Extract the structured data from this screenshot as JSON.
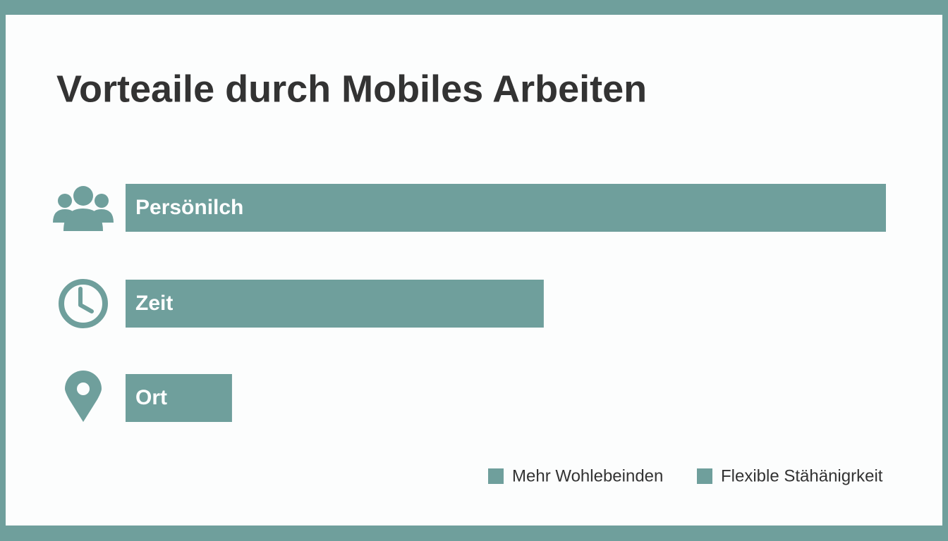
{
  "chart_data": {
    "type": "bar",
    "orientation": "horizontal",
    "title": "Vorteaile durch Mobiles Arbeiten",
    "categories": [
      "Persönilch",
      "Zeit",
      "Ort"
    ],
    "values": [
      100,
      55,
      14
    ],
    "color": "#6f9f9c",
    "xlim": [
      0,
      100
    ],
    "legend": [
      {
        "name": "Mehr Wohlebeinden",
        "color": "#6f9f9c"
      },
      {
        "name": "Flexible Stähänigrkeit",
        "color": "#6f9f9c"
      }
    ]
  }
}
